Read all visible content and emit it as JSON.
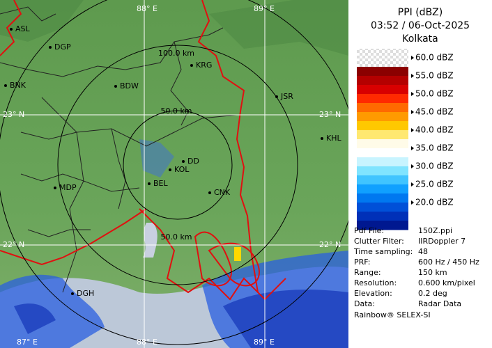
{
  "legend": {
    "title": "PPI (dBZ)",
    "time": "03:52 / 06-Oct-2025",
    "site": "Kolkata",
    "scale": [
      "60.0 dBZ",
      "55.0 dBZ",
      "50.0 dBZ",
      "45.0 dBZ",
      "40.0 dBZ",
      "35.0 dBZ",
      "30.0 dBZ",
      "25.0 dBZ",
      "20.0 dBZ"
    ]
  },
  "info": {
    "rows": [
      [
        "Pdf File:",
        "150Z.ppi"
      ],
      [
        "Clutter Filter:",
        "IIRDoppler 7"
      ],
      [
        "Time sampling:",
        "48"
      ],
      [
        "PRF:",
        "600 Hz / 450 Hz"
      ],
      [
        "Range:",
        "150 km"
      ],
      [
        "Resolution:",
        "0.600 km/pixel"
      ],
      [
        "Elevation:",
        "0.2 deg"
      ],
      [
        "Data:",
        "Radar Data"
      ]
    ],
    "footer": "Rainbow® SELEX-SI"
  },
  "map": {
    "places": [
      "ASL",
      "DGP",
      "BNK",
      "BDW",
      "KRG",
      "JSR",
      "KHL",
      "DD",
      "KOL",
      "BEL",
      "CNK",
      "MDP",
      "DGH"
    ],
    "grid_labels": [
      "88° E",
      "89° E",
      "23° N",
      "23° N",
      "22° N",
      "22° N",
      "87° E",
      "88° E",
      "89° E"
    ],
    "range_labels": [
      "100.0 km",
      "50.0 km",
      "50.0 km"
    ]
  }
}
